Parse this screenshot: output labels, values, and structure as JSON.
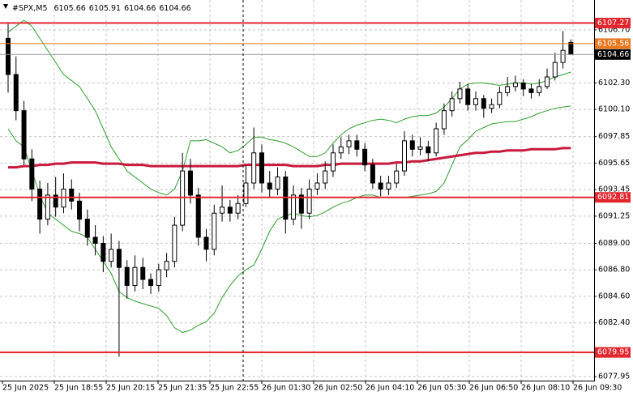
{
  "chart_data": {
    "type": "candlestick",
    "symbol": "#SPX,M5",
    "ylim": [
      6077.61,
      6109.18
    ],
    "yticks": [
      {
        "value": 6106.7,
        "label": "6106.70"
      },
      {
        "value": 6102.3,
        "label": "6102.30"
      },
      {
        "value": 6100.1,
        "label": "6100.10"
      },
      {
        "value": 6097.85,
        "label": "6097.85"
      },
      {
        "value": 6095.65,
        "label": "6095.65"
      },
      {
        "value": 6093.45,
        "label": "6093.45"
      },
      {
        "value": 6091.25,
        "label": "6091.25"
      },
      {
        "value": 6089,
        "label": "6089.00"
      },
      {
        "value": 6086.8,
        "label": "6086.80"
      },
      {
        "value": 6084.6,
        "label": "6084.60"
      },
      {
        "value": 6082.4,
        "label": "6082.40"
      },
      {
        "value": 6077.95,
        "label": "6077.95"
      }
    ],
    "x_labels": [
      "25 Jun 2025",
      "25 Jun 18:55",
      "25 Jun 20:15",
      "25 Jun 21:35",
      "25 Jun 22:55",
      "26 Jun 01:30",
      "26 Jun 02:50",
      "26 Jun 04:10",
      "26 Jun 05:30",
      "26 Jun 06:50",
      "26 Jun 08:10",
      "26 Jun 09:30"
    ],
    "grid": true,
    "bull_color": "#ffffff",
    "bear_color": "#000000",
    "candles": [
      [
        6106.0,
        6107.2,
        6101.5,
        6103.0
      ],
      [
        6103.0,
        6104.5,
        6099.2,
        6100.0
      ],
      [
        6100.0,
        6100.8,
        6095.5,
        6096.0
      ],
      [
        6096.0,
        6096.8,
        6092.5,
        6093.5
      ],
      [
        6093.5,
        6094.2,
        6089.8,
        6091.0
      ],
      [
        6091.0,
        6094.0,
        6090.5,
        6093.0
      ],
      [
        6093.0,
        6094.5,
        6091.2,
        6092.0
      ],
      [
        6092.0,
        6094.8,
        6091.5,
        6093.5
      ],
      [
        6093.5,
        6094.3,
        6091.8,
        6092.5
      ],
      [
        6092.5,
        6093.2,
        6090.0,
        6091.0
      ],
      [
        6091.0,
        6091.8,
        6088.8,
        6089.5
      ],
      [
        6089.5,
        6090.5,
        6088.0,
        6089.0
      ],
      [
        6089.0,
        6089.6,
        6086.6,
        6087.5
      ],
      [
        6087.5,
        6089.8,
        6087.0,
        6088.5
      ],
      [
        6088.5,
        6089.2,
        6079.6,
        6087.0
      ],
      [
        6087.0,
        6087.6,
        6084.4,
        6085.5
      ],
      [
        6085.5,
        6088.0,
        6085.0,
        6087.0
      ],
      [
        6087.0,
        6087.8,
        6085.2,
        6086.0
      ],
      [
        6086.0,
        6086.5,
        6084.8,
        6085.5
      ],
      [
        6085.5,
        6087.3,
        6085.0,
        6086.8
      ],
      [
        6086.8,
        6088.2,
        6086.2,
        6087.5
      ],
      [
        6087.5,
        6091.2,
        6087.0,
        6090.5
      ],
      [
        6090.5,
        6096.5,
        6090.0,
        6095.0
      ],
      [
        6095.0,
        6096.0,
        6092.3,
        6093.0
      ],
      [
        6093.0,
        6093.6,
        6088.8,
        6089.5
      ],
      [
        6089.5,
        6090.2,
        6087.5,
        6088.5
      ],
      [
        6088.5,
        6092.2,
        6088.0,
        6091.5
      ],
      [
        6091.5,
        6093.8,
        6090.8,
        6092.0
      ],
      [
        6092.0,
        6092.6,
        6090.8,
        6091.5
      ],
      [
        6091.5,
        6093.0,
        6091.0,
        6092.3
      ],
      [
        6092.3,
        6095.5,
        6092.0,
        6094.0
      ],
      [
        6094.0,
        6098.6,
        6093.5,
        6096.5
      ],
      [
        6096.5,
        6097.2,
        6093.2,
        6094.0
      ],
      [
        6094.0,
        6095.0,
        6092.8,
        6093.5
      ],
      [
        6093.5,
        6095.3,
        6093.0,
        6094.5
      ],
      [
        6094.5,
        6095.0,
        6089.8,
        6091.0
      ],
      [
        6091.0,
        6093.8,
        6090.5,
        6093.0
      ],
      [
        6093.0,
        6093.6,
        6090.2,
        6091.5
      ],
      [
        6091.5,
        6094.3,
        6091.0,
        6093.5
      ],
      [
        6093.5,
        6094.8,
        6093.0,
        6094.0
      ],
      [
        6094.0,
        6095.8,
        6093.5,
        6095.0
      ],
      [
        6095.0,
        6097.2,
        6094.5,
        6096.5
      ],
      [
        6096.5,
        6097.8,
        6096.0,
        6097.0
      ],
      [
        6097.0,
        6098.0,
        6096.4,
        6097.5
      ],
      [
        6097.5,
        6098.0,
        6096.2,
        6096.8
      ],
      [
        6096.8,
        6097.3,
        6095.0,
        6095.5
      ],
      [
        6095.5,
        6096.0,
        6093.5,
        6094.0
      ],
      [
        6094.0,
        6094.6,
        6092.9,
        6093.5
      ],
      [
        6093.5,
        6094.6,
        6093.0,
        6094.0
      ],
      [
        6094.0,
        6095.6,
        6093.6,
        6095.0
      ],
      [
        6095.0,
        6098.3,
        6094.6,
        6097.5
      ],
      [
        6097.5,
        6098.0,
        6096.2,
        6096.8
      ],
      [
        6096.8,
        6097.8,
        6096.3,
        6097.0
      ],
      [
        6097.0,
        6097.5,
        6095.8,
        6096.5
      ],
      [
        6096.5,
        6099.0,
        6096.2,
        6098.5
      ],
      [
        6098.5,
        6100.6,
        6098.0,
        6100.0
      ],
      [
        6100.0,
        6101.6,
        6099.5,
        6101.0
      ],
      [
        6101.0,
        6102.4,
        6100.6,
        6101.8
      ],
      [
        6101.8,
        6102.2,
        6100.0,
        6100.5
      ],
      [
        6100.5,
        6101.6,
        6100.0,
        6101.0
      ],
      [
        6101.0,
        6101.3,
        6099.4,
        6100.2
      ],
      [
        6100.2,
        6101.0,
        6099.8,
        6100.5
      ],
      [
        6100.5,
        6102.0,
        6100.2,
        6101.5
      ],
      [
        6101.5,
        6102.8,
        6101.2,
        6102.0
      ],
      [
        6102.0,
        6102.9,
        6101.6,
        6102.3
      ],
      [
        6102.3,
        6102.6,
        6101.2,
        6101.8
      ],
      [
        6101.8,
        6102.2,
        6101.0,
        6101.5
      ],
      [
        6101.5,
        6102.6,
        6101.2,
        6102.0
      ],
      [
        6102.0,
        6103.5,
        6101.8,
        6102.8
      ],
      [
        6102.8,
        6104.8,
        6102.5,
        6104.0
      ],
      [
        6104.0,
        6106.6,
        6103.5,
        6105.0
      ],
      [
        6105.66,
        6105.91,
        6104.66,
        6104.66
      ]
    ],
    "bands": {
      "color": "#2e9e2e",
      "upper": [
        6106.5,
        6107,
        6107.5,
        6107,
        6106,
        6105,
        6104,
        6103,
        6102.5,
        6102,
        6101,
        6100,
        6098.5,
        6097,
        6096,
        6095,
        6094.5,
        6094,
        6093.5,
        6093.2,
        6093,
        6093.5,
        6095,
        6097.5,
        6097.5,
        6097.6,
        6097.3,
        6097,
        6096.5,
        6096.7,
        6097.2,
        6097.8,
        6097.8,
        6097.6,
        6097.5,
        6097.3,
        6097,
        6096.6,
        6096.2,
        6096.2,
        6096.5,
        6097.3,
        6098,
        6098.5,
        6098.8,
        6099,
        6099.2,
        6099.3,
        6099.2,
        6099,
        6099.3,
        6099.5,
        6099.6,
        6099.6,
        6099.8,
        6100.3,
        6101,
        6101.8,
        6102.2,
        6102.3,
        6102.3,
        6102.2,
        6102.1,
        6102.2,
        6102.3,
        6102.3,
        6102.2,
        6102.3,
        6102.5,
        6102.8,
        6103,
        6103.2
      ],
      "lower": [
        6098.5,
        6097.5,
        6097,
        6095,
        6093,
        6091.5,
        6091,
        6090.5,
        6090,
        6089.8,
        6089.5,
        6088.5,
        6087.5,
        6086.5,
        6085,
        6084.5,
        6084.2,
        6084,
        6083.8,
        6083.6,
        6083,
        6082,
        6081.6,
        6081.8,
        6082.2,
        6082.5,
        6083.2,
        6084.5,
        6085.5,
        6086.3,
        6086.8,
        6087.2,
        6088.5,
        6090,
        6091,
        6091.3,
        6091.5,
        6091.3,
        6091.2,
        6091.3,
        6091.6,
        6092,
        6092.3,
        6092.5,
        6092.8,
        6093,
        6093,
        6092.8,
        6092.8,
        6092.8,
        6092.8,
        6092.9,
        6093,
        6093.1,
        6093.3,
        6094,
        6095.5,
        6097,
        6097.6,
        6098.3,
        6098.6,
        6098.9,
        6099,
        6099.1,
        6099.1,
        6099.3,
        6099.5,
        6099.8,
        6100,
        6100.2,
        6100.3,
        6100.4
      ]
    },
    "ma": {
      "color": "#c8193c",
      "values": [
        6095.3,
        6095.3,
        6095.4,
        6095.4,
        6095.5,
        6095.5,
        6095.6,
        6095.6,
        6095.7,
        6095.7,
        6095.7,
        6095.7,
        6095.6,
        6095.6,
        6095.6,
        6095.5,
        6095.5,
        6095.5,
        6095.4,
        6095.4,
        6095.4,
        6095.4,
        6095.4,
        6095.4,
        6095.4,
        6095.4,
        6095.4,
        6095.4,
        6095.4,
        6095.4,
        6095.5,
        6095.5,
        6095.5,
        6095.5,
        6095.5,
        6095.5,
        6095.4,
        6095.4,
        6095.4,
        6095.4,
        6095.5,
        6095.5,
        6095.6,
        6095.6,
        6095.6,
        6095.6,
        6095.6,
        6095.6,
        6095.6,
        6095.7,
        6095.7,
        6095.8,
        6095.8,
        6095.9,
        6096.0,
        6096.1,
        6096.2,
        6096.3,
        6096.4,
        6096.5,
        6096.5,
        6096.6,
        6096.6,
        6096.7,
        6096.7,
        6096.7,
        6096.8,
        6096.8,
        6096.8,
        6096.8,
        6096.9,
        6096.9
      ]
    },
    "levels": [
      {
        "value": 6107.27,
        "color": "#e3262e"
      },
      {
        "value": 6105.56,
        "color": "#e8781e"
      },
      {
        "value": 6092.81,
        "color": "#e3262e"
      },
      {
        "value": 6079.95,
        "color": "#e3262e"
      }
    ],
    "bid_color": "#9a9a9a"
  }
}
